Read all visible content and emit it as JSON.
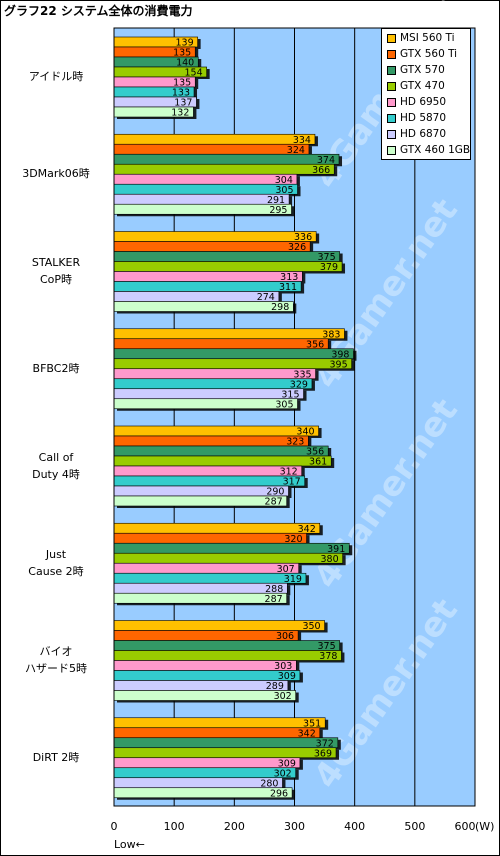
{
  "title": "グラフ22 システム全体の消費電力",
  "chart_data": {
    "type": "bar",
    "orientation": "horizontal",
    "categories": [
      [
        "アイドル時"
      ],
      [
        "3DMark06時"
      ],
      [
        "STALKER",
        "CoP時"
      ],
      [
        "BFBC2時"
      ],
      [
        "Call of",
        "Duty 4時"
      ],
      [
        "Just",
        "Cause 2時"
      ],
      [
        "バイオ",
        "ハザード5時"
      ],
      [
        "DiRT 2時"
      ]
    ],
    "series": [
      {
        "name": "MSI 560 Ti",
        "color": "#ffc000",
        "values": [
          139,
          334,
          336,
          383,
          340,
          342,
          350,
          351
        ]
      },
      {
        "name": "GTX 560 Ti",
        "color": "#ff6600",
        "values": [
          135,
          324,
          326,
          356,
          323,
          320,
          306,
          342
        ]
      },
      {
        "name": "GTX 570",
        "color": "#339966",
        "values": [
          140,
          374,
          375,
          398,
          356,
          391,
          375,
          372
        ]
      },
      {
        "name": "GTX 470",
        "color": "#99cc00",
        "values": [
          154,
          366,
          379,
          395,
          361,
          380,
          378,
          369
        ]
      },
      {
        "name": "HD 6950",
        "color": "#ff99cc",
        "values": [
          135,
          304,
          313,
          335,
          312,
          307,
          303,
          309
        ]
      },
      {
        "name": "HD 5870",
        "color": "#33cccc",
        "values": [
          133,
          305,
          311,
          329,
          317,
          319,
          309,
          302
        ]
      },
      {
        "name": "HD 6870",
        "color": "#ccccff",
        "values": [
          137,
          291,
          274,
          315,
          290,
          288,
          289,
          280
        ]
      },
      {
        "name": "GTX 460 1GB",
        "color": "#ccffcc",
        "values": [
          132,
          295,
          298,
          305,
          287,
          287,
          302,
          296
        ]
      }
    ],
    "xlim": [
      0,
      600
    ],
    "xticks": [
      "0",
      "100",
      "200",
      "300",
      "400",
      "500",
      "600"
    ],
    "x_note": "Low←",
    "x_unit": "(W)",
    "watermark": "4Gamer.net",
    "grid": true,
    "legend_position": "top-right",
    "plot_background": "#99ccff"
  }
}
